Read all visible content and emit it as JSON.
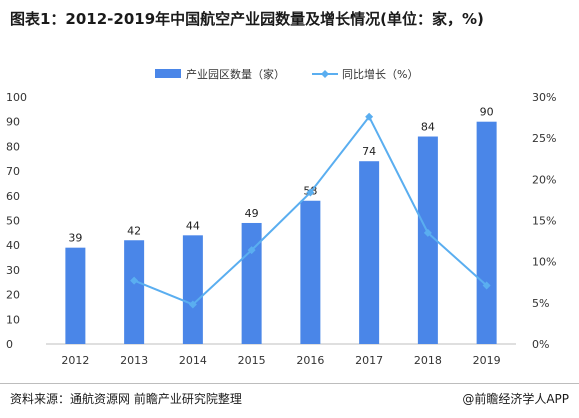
{
  "header": {
    "title": "图表1：2012-2019年中国航空产业园数量及增长情况(单位：家，%)"
  },
  "footer": {
    "source": "资料来源：通航资源网 前瞻产业研究院整理",
    "brand": "@前瞻经济学人APP"
  },
  "colors": {
    "bar": "#4a86e8",
    "line": "#5aaef0",
    "axis": "#bfbfbf"
  },
  "chart_data": {
    "type": "bar",
    "categories": [
      "2012",
      "2013",
      "2014",
      "2015",
      "2016",
      "2017",
      "2018",
      "2019"
    ],
    "series": [
      {
        "name": "产业园区数量（家）",
        "type": "bar",
        "axis": "left",
        "values": [
          39,
          42,
          44,
          49,
          58,
          74,
          84,
          90
        ]
      },
      {
        "name": "同比增长（%）",
        "type": "line",
        "axis": "right",
        "values": [
          null,
          7.7,
          4.8,
          11.4,
          18.4,
          27.6,
          13.5,
          7.1
        ]
      }
    ],
    "y_left": {
      "min": 0,
      "max": 100,
      "ticks": [
        "0",
        "10",
        "20",
        "30",
        "40",
        "50",
        "60",
        "70",
        "80",
        "90",
        "100"
      ]
    },
    "y_right": {
      "min": 0,
      "max": 30,
      "ticks": [
        "0%",
        "5%",
        "10%",
        "15%",
        "20%",
        "25%",
        "30%"
      ]
    },
    "grid": false,
    "legend": "top-center"
  }
}
